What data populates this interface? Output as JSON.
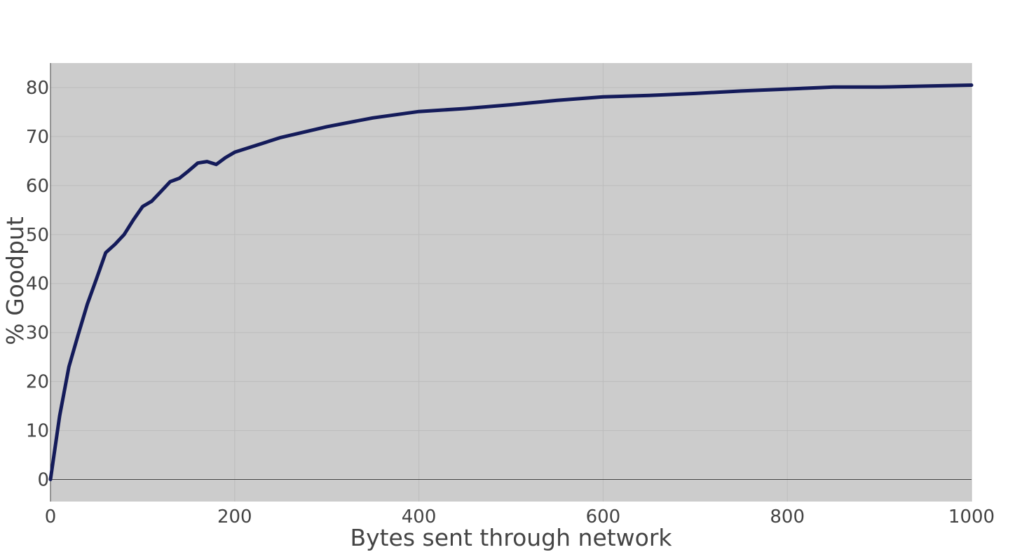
{
  "chart_data": {
    "type": "line",
    "title": "",
    "xlabel": "Bytes sent through network",
    "ylabel": "% Goodput",
    "xlim": [
      0,
      1000
    ],
    "ylim": [
      -4.5,
      85
    ],
    "xticks": [
      0,
      200,
      400,
      600,
      800,
      1000
    ],
    "yticks": [
      0,
      10,
      20,
      30,
      40,
      50,
      60,
      70,
      80
    ],
    "xtick_labels": [
      "0",
      "200",
      "400",
      "600",
      "800",
      "1000"
    ],
    "ytick_labels": [
      "0",
      "10",
      "20",
      "30",
      "40",
      "50",
      "60",
      "70",
      "80"
    ],
    "grid": true,
    "legend": "none",
    "colors": {
      "plot_background": "#cccccc",
      "grid": "#bdbdbd",
      "line": "#141b5a",
      "zero_line": "#444444",
      "text": "#444444"
    },
    "series": [
      {
        "x": [
          0,
          10,
          20,
          30,
          40,
          50,
          60,
          70,
          80,
          90,
          100,
          110,
          120,
          130,
          140,
          150,
          160,
          170,
          180,
          190,
          200,
          250,
          300,
          350,
          400,
          450,
          500,
          550,
          600,
          650,
          700,
          750,
          800,
          850,
          900,
          950,
          1000
        ],
        "y": [
          0,
          13,
          23,
          29.5,
          35.8,
          41,
          46.3,
          48,
          50,
          53,
          55.7,
          56.8,
          58.8,
          60.8,
          61.5,
          63,
          64.6,
          64.9,
          64.3,
          65.7,
          66.8,
          69.8,
          72,
          73.8,
          75.1,
          75.7,
          76.5,
          77.4,
          78.1,
          78.4,
          78.8,
          79.3,
          79.7,
          80.1,
          80.1,
          80.3,
          80.5
        ]
      }
    ]
  }
}
